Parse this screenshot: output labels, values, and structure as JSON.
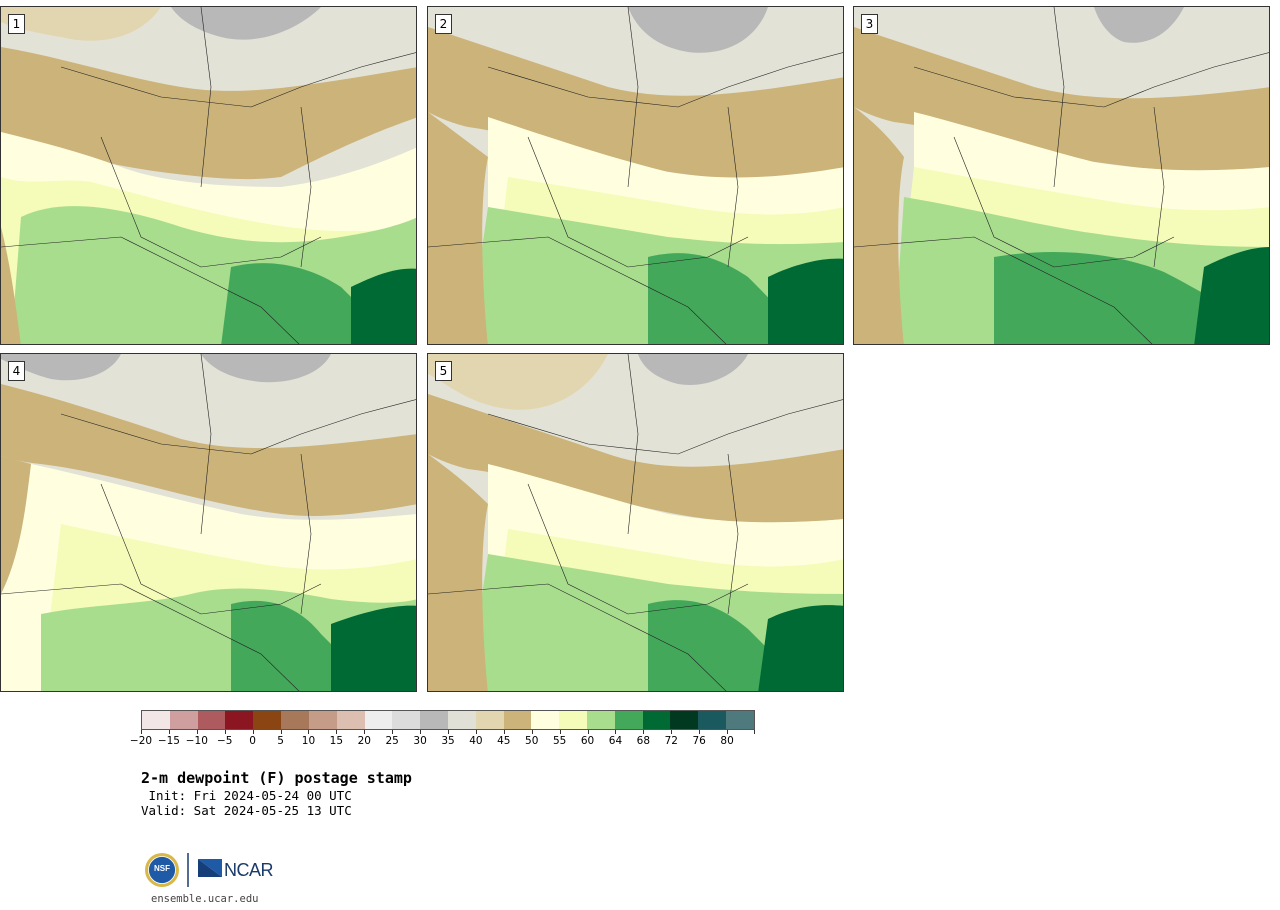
{
  "panels": [
    {
      "label": "1"
    },
    {
      "label": "2"
    },
    {
      "label": "3"
    },
    {
      "label": "4"
    },
    {
      "label": "5"
    }
  ],
  "colorbar": {
    "colors": [
      "#f2e6e6",
      "#cf9fa0",
      "#ad5b5e",
      "#8b1520",
      "#8b4513",
      "#a8785a",
      "#c49c87",
      "#dcbfb0",
      "#eeeeee",
      "#dcdcdc",
      "#b8b8b8",
      "#e0e0d6",
      "#e2d6b0",
      "#cbb37a",
      "#ffffe0",
      "#f5fbb8",
      "#a8dd8e",
      "#44a85a",
      "#006a35",
      "#00391f",
      "#1a5a5f",
      "#4e7a7e"
    ],
    "ticks": [
      "−20",
      "−15",
      "−10",
      "−5",
      "0",
      "5",
      "10",
      "15",
      "20",
      "25",
      "30",
      "35",
      "40",
      "45",
      "50",
      "55",
      "60",
      "64",
      "68",
      "72",
      "76",
      "80"
    ]
  },
  "title": "2-m dewpoint (F) postage stamp",
  "init": " Init: Fri 2024-05-24 00 UTC",
  "valid": "Valid: Sat 2024-05-25 13 UTC",
  "logo": {
    "agency": "NCAR",
    "seal": "NSF"
  },
  "site": "ensemble.ucar.edu"
}
